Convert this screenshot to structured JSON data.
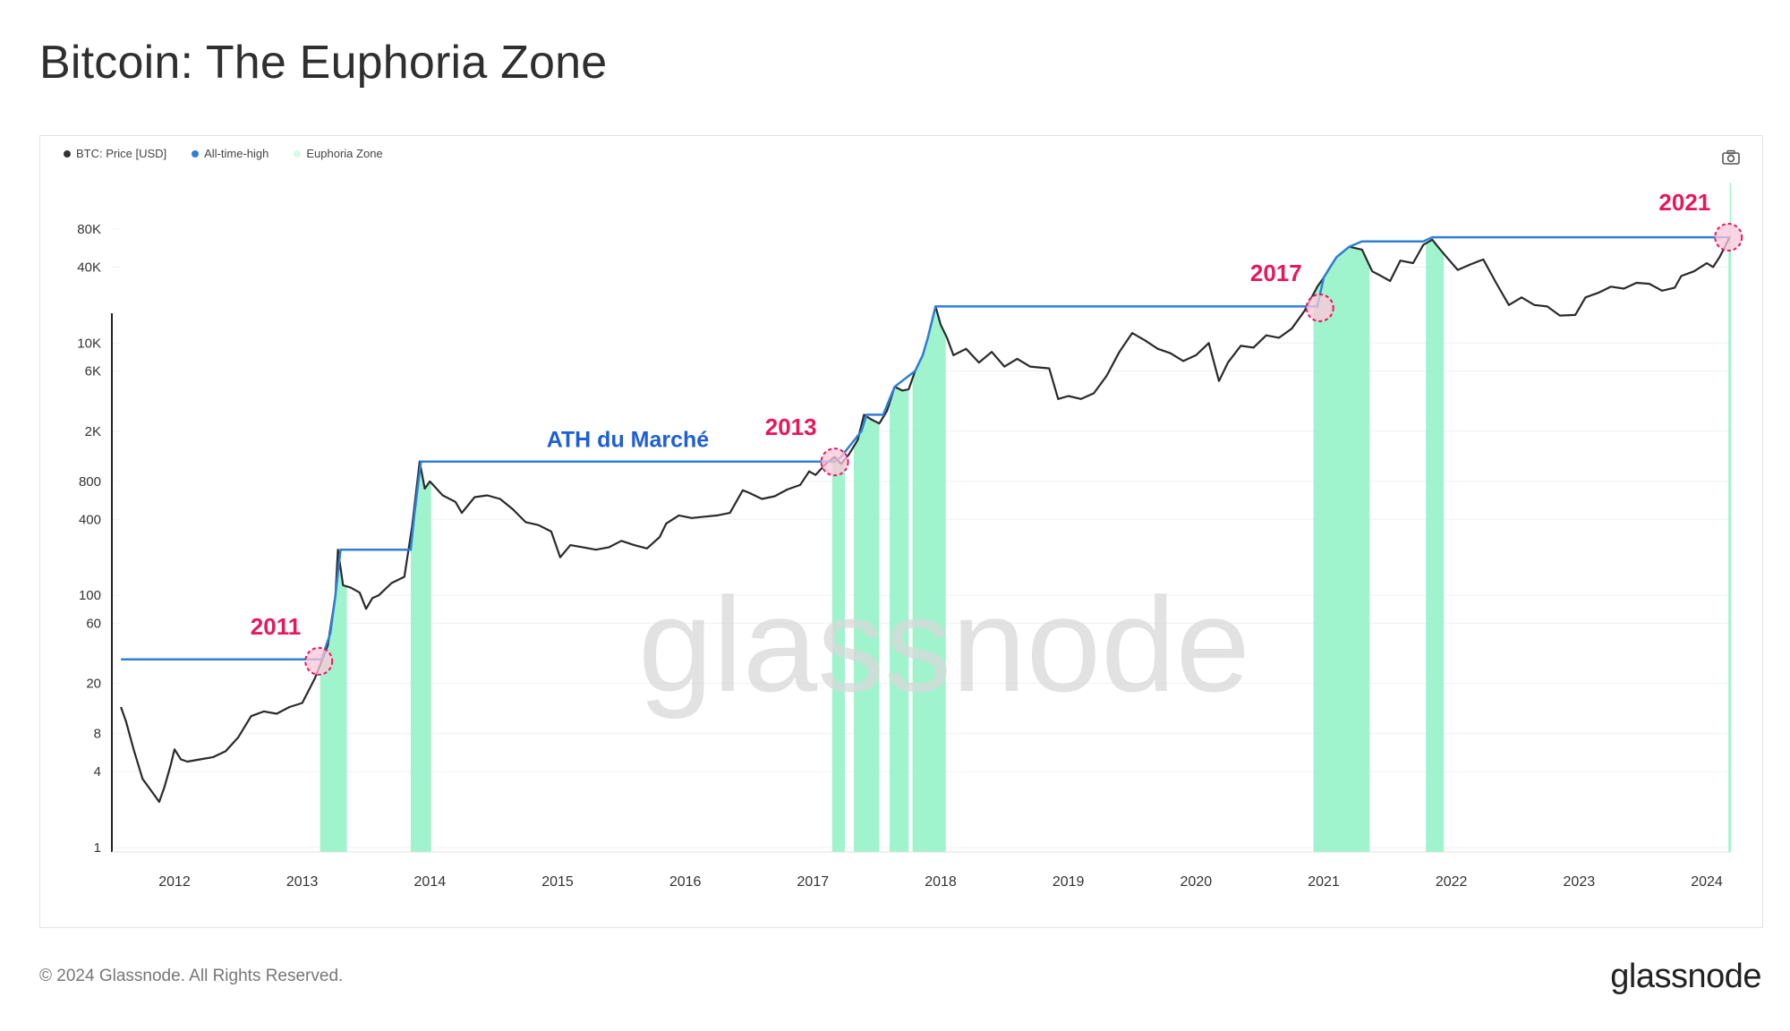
{
  "title": "Bitcoin: The Euphoria Zone",
  "legend": [
    {
      "label": "BTC: Price [USD]",
      "color": "#333333"
    },
    {
      "label": "All-time-high",
      "color": "#2f7fd6"
    },
    {
      "label": "Euphoria Zone",
      "color": "#d8f8e9"
    }
  ],
  "watermark": "glassnode",
  "footer": {
    "copyright": "© 2024 Glassnode. All Rights Reserved.",
    "logo": "glassnode"
  },
  "colors": {
    "price": "#2a2a2a",
    "ath": "#2f7fd6",
    "euphoria": "#8ff2c4",
    "annotation": "#e8175d",
    "ath_label": "#1f5fd6"
  },
  "chart_data": {
    "type": "line",
    "scale_y": "log",
    "x_ticks": [
      "2012",
      "2013",
      "2014",
      "2015",
      "2016",
      "2017",
      "2018",
      "2019",
      "2020",
      "2021",
      "2022",
      "2023",
      "2024"
    ],
    "y_ticks": [
      "1",
      "4",
      "8",
      "20",
      "60",
      "100",
      "400",
      "800",
      "2K",
      "6K",
      "10K",
      "40K",
      "80K"
    ],
    "y_tick_values": [
      1,
      4,
      8,
      20,
      60,
      100,
      400,
      800,
      2000,
      6000,
      10000,
      40000,
      80000
    ],
    "xlim": [
      2011.58,
      2024.3
    ],
    "series": [
      {
        "name": "BTC: Price [USD]",
        "points": [
          [
            2011.58,
            13
          ],
          [
            2011.62,
            10
          ],
          [
            2011.68,
            6
          ],
          [
            2011.75,
            3.5
          ],
          [
            2011.82,
            2.8
          ],
          [
            2011.88,
            2.3
          ],
          [
            2011.92,
            3
          ],
          [
            2011.97,
            4.5
          ],
          [
            2012.0,
            6
          ],
          [
            2012.05,
            5
          ],
          [
            2012.1,
            4.8
          ],
          [
            2012.2,
            5
          ],
          [
            2012.3,
            5.2
          ],
          [
            2012.4,
            5.8
          ],
          [
            2012.5,
            7.5
          ],
          [
            2012.6,
            11
          ],
          [
            2012.7,
            12
          ],
          [
            2012.8,
            11.5
          ],
          [
            2012.9,
            13
          ],
          [
            2013.0,
            14
          ],
          [
            2013.1,
            22
          ],
          [
            2013.2,
            40
          ],
          [
            2013.26,
            100
          ],
          [
            2013.28,
            230
          ],
          [
            2013.32,
            120
          ],
          [
            2013.38,
            115
          ],
          [
            2013.45,
            105
          ],
          [
            2013.5,
            78
          ],
          [
            2013.55,
            95
          ],
          [
            2013.6,
            100
          ],
          [
            2013.7,
            125
          ],
          [
            2013.8,
            140
          ],
          [
            2013.86,
            350
          ],
          [
            2013.92,
            1150
          ],
          [
            2013.96,
            700
          ],
          [
            2014.0,
            800
          ],
          [
            2014.1,
            620
          ],
          [
            2014.2,
            550
          ],
          [
            2014.25,
            450
          ],
          [
            2014.35,
            600
          ],
          [
            2014.45,
            620
          ],
          [
            2014.55,
            580
          ],
          [
            2014.65,
            480
          ],
          [
            2014.75,
            380
          ],
          [
            2014.85,
            360
          ],
          [
            2014.95,
            320
          ],
          [
            2015.02,
            200
          ],
          [
            2015.1,
            250
          ],
          [
            2015.2,
            240
          ],
          [
            2015.3,
            230
          ],
          [
            2015.4,
            240
          ],
          [
            2015.5,
            270
          ],
          [
            2015.6,
            250
          ],
          [
            2015.7,
            235
          ],
          [
            2015.8,
            290
          ],
          [
            2015.85,
            370
          ],
          [
            2015.95,
            430
          ],
          [
            2016.05,
            410
          ],
          [
            2016.15,
            420
          ],
          [
            2016.25,
            430
          ],
          [
            2016.35,
            450
          ],
          [
            2016.45,
            680
          ],
          [
            2016.5,
            650
          ],
          [
            2016.6,
            580
          ],
          [
            2016.7,
            610
          ],
          [
            2016.8,
            690
          ],
          [
            2016.9,
            750
          ],
          [
            2016.97,
            960
          ],
          [
            2017.02,
            900
          ],
          [
            2017.1,
            1100
          ],
          [
            2017.17,
            1250
          ],
          [
            2017.22,
            1100
          ],
          [
            2017.28,
            1300
          ],
          [
            2017.35,
            1700
          ],
          [
            2017.4,
            2700
          ],
          [
            2017.45,
            2500
          ],
          [
            2017.52,
            2300
          ],
          [
            2017.58,
            2900
          ],
          [
            2017.64,
            4500
          ],
          [
            2017.7,
            4200
          ],
          [
            2017.75,
            4300
          ],
          [
            2017.8,
            6000
          ],
          [
            2017.86,
            8000
          ],
          [
            2017.9,
            11000
          ],
          [
            2017.96,
            19500
          ],
          [
            2018.0,
            14000
          ],
          [
            2018.05,
            11000
          ],
          [
            2018.1,
            8000
          ],
          [
            2018.2,
            9000
          ],
          [
            2018.3,
            7000
          ],
          [
            2018.4,
            8500
          ],
          [
            2018.5,
            6500
          ],
          [
            2018.6,
            7500
          ],
          [
            2018.7,
            6500
          ],
          [
            2018.85,
            6300
          ],
          [
            2018.92,
            3600
          ],
          [
            2019.0,
            3800
          ],
          [
            2019.1,
            3600
          ],
          [
            2019.2,
            4000
          ],
          [
            2019.3,
            5500
          ],
          [
            2019.4,
            8500
          ],
          [
            2019.5,
            12000
          ],
          [
            2019.6,
            10500
          ],
          [
            2019.7,
            9000
          ],
          [
            2019.8,
            8300
          ],
          [
            2019.9,
            7200
          ],
          [
            2020.0,
            8000
          ],
          [
            2020.1,
            10000
          ],
          [
            2020.18,
            5000
          ],
          [
            2020.25,
            7000
          ],
          [
            2020.35,
            9500
          ],
          [
            2020.45,
            9200
          ],
          [
            2020.55,
            11500
          ],
          [
            2020.65,
            11000
          ],
          [
            2020.75,
            13000
          ],
          [
            2020.85,
            18000
          ],
          [
            2020.95,
            28000
          ],
          [
            2021.0,
            33000
          ],
          [
            2021.1,
            48000
          ],
          [
            2021.2,
            58000
          ],
          [
            2021.3,
            55000
          ],
          [
            2021.38,
            37000
          ],
          [
            2021.45,
            34000
          ],
          [
            2021.52,
            31000
          ],
          [
            2021.6,
            45000
          ],
          [
            2021.7,
            43000
          ],
          [
            2021.78,
            60000
          ],
          [
            2021.85,
            66000
          ],
          [
            2021.9,
            57000
          ],
          [
            2021.97,
            47000
          ],
          [
            2022.05,
            38000
          ],
          [
            2022.15,
            42000
          ],
          [
            2022.25,
            46000
          ],
          [
            2022.35,
            30000
          ],
          [
            2022.45,
            20000
          ],
          [
            2022.55,
            23000
          ],
          [
            2022.65,
            20000
          ],
          [
            2022.75,
            19500
          ],
          [
            2022.85,
            16500
          ],
          [
            2022.97,
            16700
          ],
          [
            2023.05,
            23000
          ],
          [
            2023.15,
            25000
          ],
          [
            2023.25,
            28000
          ],
          [
            2023.35,
            27000
          ],
          [
            2023.45,
            30000
          ],
          [
            2023.55,
            29500
          ],
          [
            2023.65,
            26000
          ],
          [
            2023.75,
            27500
          ],
          [
            2023.8,
            34000
          ],
          [
            2023.9,
            37000
          ],
          [
            2024.0,
            43000
          ],
          [
            2024.05,
            40000
          ],
          [
            2024.1,
            48000
          ],
          [
            2024.15,
            60000
          ],
          [
            2024.18,
            70000
          ]
        ]
      },
      {
        "name": "All-time-high",
        "points": [
          [
            2011.58,
            31
          ],
          [
            2013.15,
            31
          ],
          [
            2013.22,
            50
          ],
          [
            2013.26,
            100
          ],
          [
            2013.3,
            230
          ],
          [
            2013.85,
            230
          ],
          [
            2013.88,
            450
          ],
          [
            2013.93,
            1150
          ],
          [
            2017.17,
            1150
          ],
          [
            2017.22,
            1250
          ],
          [
            2017.38,
            2000
          ],
          [
            2017.42,
            2700
          ],
          [
            2017.55,
            2700
          ],
          [
            2017.64,
            4500
          ],
          [
            2017.8,
            6000
          ],
          [
            2017.86,
            8000
          ],
          [
            2017.9,
            11000
          ],
          [
            2017.96,
            19500
          ],
          [
            2020.95,
            19500
          ],
          [
            2021.0,
            33000
          ],
          [
            2021.05,
            40000
          ],
          [
            2021.1,
            48000
          ],
          [
            2021.2,
            58000
          ],
          [
            2021.3,
            64000
          ],
          [
            2021.78,
            64000
          ],
          [
            2021.85,
            69000
          ],
          [
            2024.18,
            69000
          ]
        ]
      }
    ],
    "euphoria_zones": [
      [
        2013.14,
        2013.35
      ],
      [
        2013.85,
        2014.01
      ],
      [
        2017.15,
        2017.25
      ],
      [
        2017.32,
        2017.52
      ],
      [
        2017.6,
        2017.75
      ],
      [
        2017.78,
        2018.04
      ],
      [
        2020.92,
        2021.36
      ],
      [
        2021.8,
        2021.94
      ],
      [
        2024.17,
        2024.19
      ]
    ],
    "annotations": [
      {
        "text": "2011",
        "x": 2013.13,
        "y": 30,
        "type": "circle-label"
      },
      {
        "text": "2013",
        "x": 2017.17,
        "y": 1140,
        "type": "circle-label"
      },
      {
        "text": "2017",
        "x": 2020.97,
        "y": 19000,
        "type": "circle-label"
      },
      {
        "text": "2021",
        "x": 2024.17,
        "y": 69000,
        "type": "circle-label"
      },
      {
        "text": "ATH du Marché",
        "x": 2015.55,
        "y": 1150,
        "type": "text"
      }
    ]
  }
}
